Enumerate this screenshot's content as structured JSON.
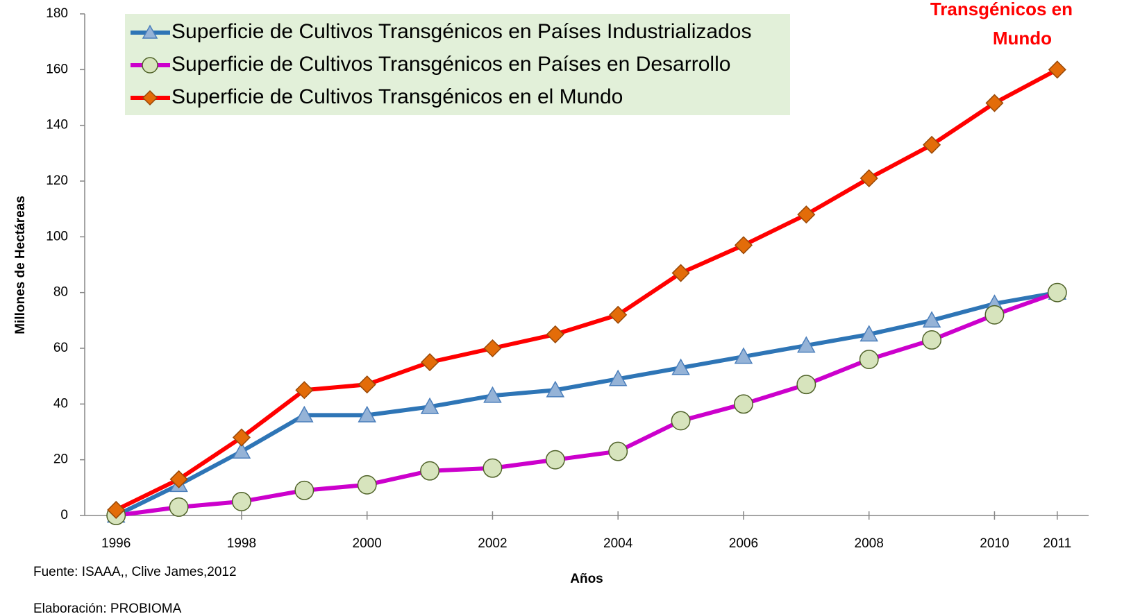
{
  "chart_data": {
    "type": "line",
    "annotations": [
      "Transgénicos en",
      "Mundo"
    ],
    "x_label": "Años",
    "y_label": "Millones de Hectáreas",
    "notes": [
      "Fuente: ISAAA,, Clive James,2012",
      "Elaboración: PROBIOMA"
    ],
    "x": [
      1996,
      1997,
      1998,
      1999,
      2000,
      2001,
      2002,
      2003,
      2004,
      2005,
      2006,
      2007,
      2008,
      2009,
      2010,
      2011
    ],
    "series": [
      {
        "name": "Superficie de Cultivos Transgénicos en Países Industrializados",
        "color": "#2e75b6",
        "marker": "triangle",
        "marker_color": "#95b3d7",
        "values": [
          0,
          11,
          23,
          36,
          36,
          39,
          43,
          45,
          49,
          53,
          57,
          61,
          65,
          70,
          76,
          80
        ]
      },
      {
        "name": "Superficie de Cultivos Transgénicos en Países en Desarrollo",
        "color": "#cc00cc",
        "marker": "circle",
        "marker_color": "#d7e4bd",
        "values": [
          0,
          3,
          5,
          9,
          11,
          16,
          17,
          20,
          23,
          34,
          40,
          47,
          56,
          63,
          72,
          80
        ]
      },
      {
        "name": "Superficie de Cultivos Transgénicos en el Mundo",
        "color": "#ff0000",
        "marker": "diamond",
        "marker_color": "#e36c09",
        "values": [
          2,
          13,
          28,
          45,
          47,
          55,
          60,
          65,
          72,
          87,
          97,
          108,
          121,
          133,
          148,
          160
        ]
      }
    ],
    "xlim": [
      1995.5,
      2011.5
    ],
    "xticks": [
      1996,
      1998,
      2000,
      2002,
      2004,
      2006,
      2008,
      2010,
      2011
    ],
    "ylim": [
      0,
      180
    ],
    "yticks": [
      0,
      20,
      40,
      60,
      80,
      100,
      120,
      140,
      160,
      180
    ],
    "grid": false,
    "legend": "top-left"
  }
}
